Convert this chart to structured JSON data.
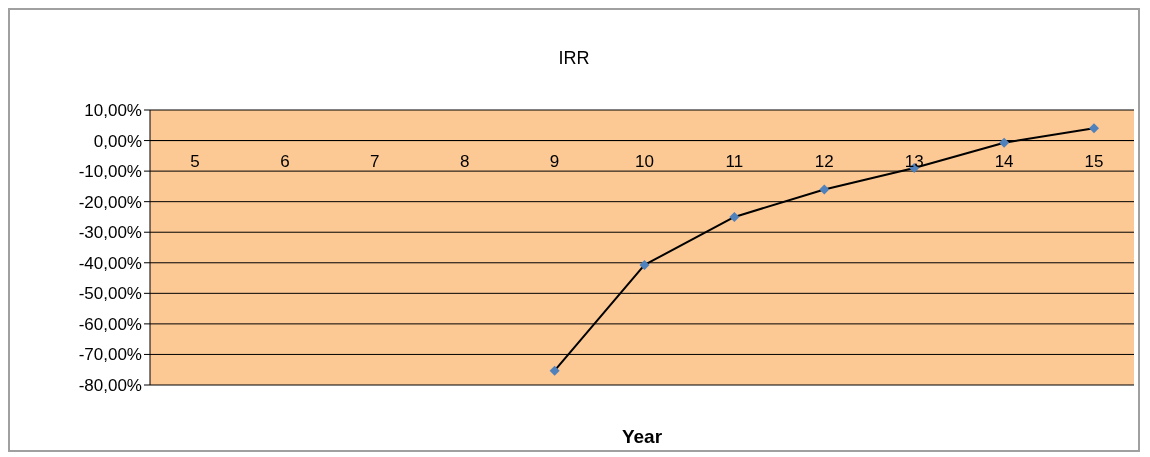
{
  "chart_data": {
    "type": "line",
    "title": "IRR",
    "xlabel": "Year",
    "categories": [
      "5",
      "6",
      "7",
      "8",
      "9",
      "10",
      "11",
      "12",
      "13",
      "14",
      "15"
    ],
    "series": [
      {
        "color": "#4f81bd",
        "values": [
          null,
          null,
          null,
          null,
          -75.3,
          -40.7,
          -25,
          -16,
          -9,
          -0.7,
          4
        ]
      }
    ],
    "ylim": [
      -80,
      10
    ],
    "yticks": [
      {
        "value": -80,
        "label": "-80,00%"
      },
      {
        "value": -70,
        "label": "-70,00%"
      },
      {
        "value": -60,
        "label": "-60,00%"
      },
      {
        "value": -50,
        "label": "-50,00%"
      },
      {
        "value": -40,
        "label": "-40,00%"
      },
      {
        "value": -30,
        "label": "-30,00%"
      },
      {
        "value": -20,
        "label": "-20,00%"
      },
      {
        "value": -10,
        "label": "-10,00%"
      },
      {
        "value": 0,
        "label": "0,00%"
      },
      {
        "value": 10,
        "label": "10,00%"
      }
    ],
    "grid": "y",
    "marker": "diamond",
    "line_style": "solid",
    "legend": false
  }
}
